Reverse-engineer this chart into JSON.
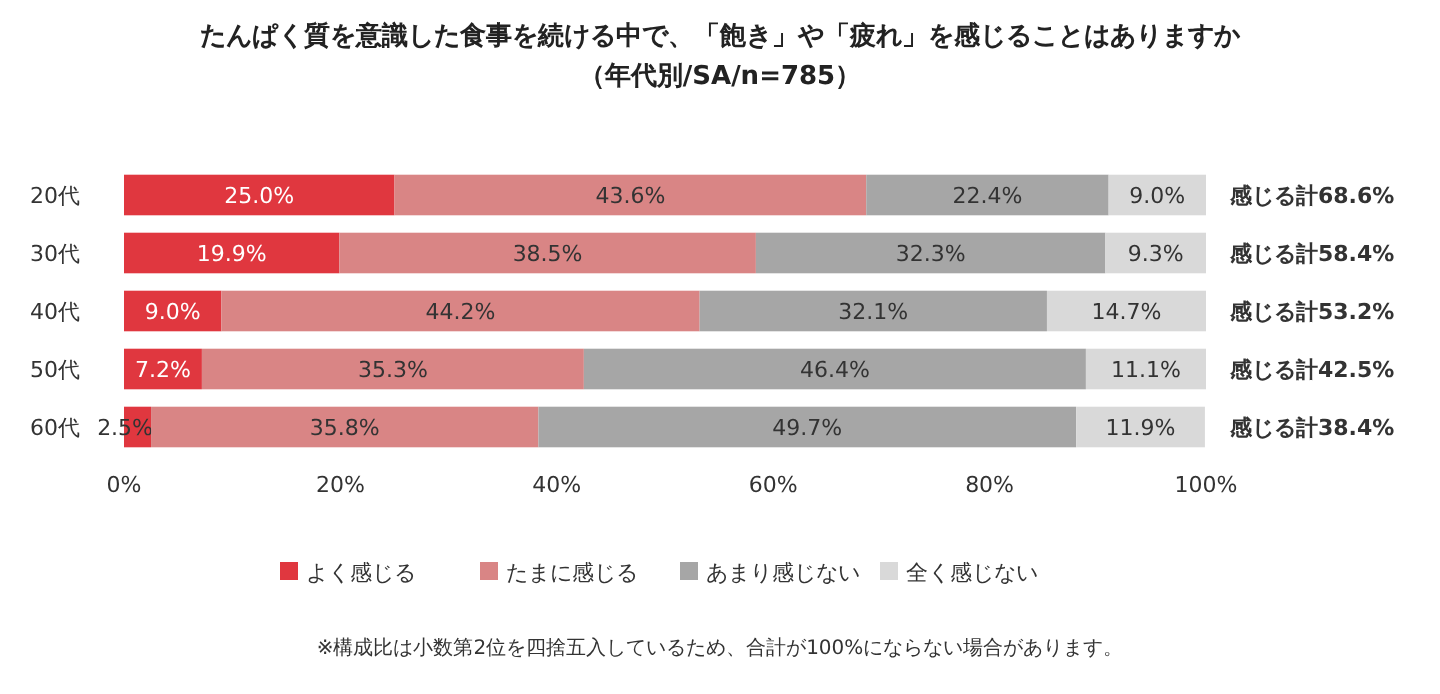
{
  "chart_data": {
    "type": "bar",
    "orientation": "horizontal",
    "stacked": true,
    "title": "たんぱく質を意識した食事を続ける中で、「飽き」や「疲れ」を感じることはありますか",
    "subtitle": "（年代別/SA/n=785）",
    "categories": [
      "20代",
      "30代",
      "40代",
      "50代",
      "60代"
    ],
    "series": [
      {
        "name": "よく感じる",
        "color": "#e0373f",
        "values": [
          25.0,
          19.9,
          9.0,
          7.2,
          2.5
        ],
        "value_labels": [
          "25.0%",
          "19.9%",
          "9.0%",
          "7.2%",
          "2.5%"
        ]
      },
      {
        "name": "たまに感じる",
        "color": "#d98585",
        "values": [
          43.6,
          38.5,
          44.2,
          35.3,
          35.8
        ],
        "value_labels": [
          "43.6%",
          "38.5%",
          "44.2%",
          "35.3%",
          "35.8%"
        ]
      },
      {
        "name": "あまり感じない",
        "color": "#a6a6a6",
        "values": [
          22.4,
          32.3,
          32.1,
          46.4,
          49.7
        ],
        "value_labels": [
          "22.4%",
          "32.3%",
          "32.1%",
          "46.4%",
          "49.7%"
        ]
      },
      {
        "name": "全く感じない",
        "color": "#d9d9d9",
        "values": [
          9.0,
          9.3,
          14.7,
          11.1,
          11.9
        ],
        "value_labels": [
          "9.0%",
          "9.3%",
          "14.7%",
          "11.1%",
          "11.9%"
        ]
      }
    ],
    "xlim": [
      0,
      100
    ],
    "xticks": [
      {
        "value": 0,
        "label": "0%"
      },
      {
        "value": 20,
        "label": "20%"
      },
      {
        "value": 40,
        "label": "40%"
      },
      {
        "value": 60,
        "label": "60%"
      },
      {
        "value": 80,
        "label": "80%"
      },
      {
        "value": 100,
        "label": "100%"
      }
    ],
    "legend": "bottom",
    "annotations": [
      "感じる計68.6%",
      "感じる計58.4%",
      "感じる計53.2%",
      "感じる計42.5%",
      "感じる計38.4%",
      "※構成比は小数第2位を四捨五入しているため、合計が100%にならない場合があります。"
    ]
  }
}
